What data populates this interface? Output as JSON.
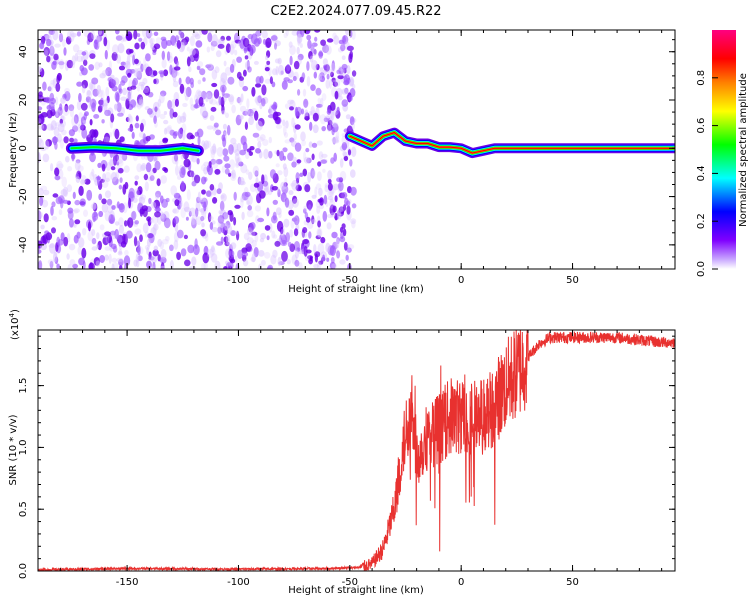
{
  "figure": {
    "title": "C2E2.2024.077.09.45.R22"
  },
  "chart_data": [
    {
      "type": "heatmap",
      "xlabel": "Height of straight line (km)",
      "ylabel": "Frequency (Hz)",
      "xlim": [
        -190,
        96
      ],
      "ylim": [
        -50,
        49
      ],
      "xticks": [
        -150,
        -100,
        -50,
        0,
        50
      ],
      "xtick_labels": [
        "-150",
        "-100",
        "-50",
        "0",
        "50"
      ],
      "yticks": [
        -40,
        -20,
        0,
        20,
        40
      ],
      "ytick_labels": [
        "-40",
        "-20",
        "0",
        "20",
        "40"
      ],
      "grid": false,
      "colorscale": {
        "label": "Normalized spectral amplitude",
        "range": [
          0,
          1
        ],
        "ticks": [
          0.0,
          0.2,
          0.4,
          0.6,
          0.8
        ],
        "tick_labels": [
          "0.0",
          "0.2",
          "0.4",
          "0.6",
          "0.8"
        ],
        "colors": [
          "#ffffff",
          "#8000ff",
          "#0000ff",
          "#00ffff",
          "#00ff00",
          "#ffff00",
          "#ff8000",
          "#ff0000",
          "#ff0080"
        ]
      },
      "noise_region_x": [
        -190,
        -48
      ],
      "ridge": [
        {
          "x": -175,
          "y": 0.0
        },
        {
          "x": -165,
          "y": 0.5
        },
        {
          "x": -155,
          "y": 0.0
        },
        {
          "x": -145,
          "y": -1.0
        },
        {
          "x": -135,
          "y": -1.0
        },
        {
          "x": -125,
          "y": 0.0
        },
        {
          "x": -118,
          "y": -1.0
        },
        {
          "x": -50,
          "y": 5.0
        },
        {
          "x": -45,
          "y": 3.0
        },
        {
          "x": -40,
          "y": 1.0
        },
        {
          "x": -35,
          "y": 5.0
        },
        {
          "x": -30,
          "y": 6.5
        },
        {
          "x": -25,
          "y": 3.0
        },
        {
          "x": -20,
          "y": 2.0
        },
        {
          "x": -15,
          "y": 2.0
        },
        {
          "x": -10,
          "y": 0.5
        },
        {
          "x": -5,
          "y": 0.5
        },
        {
          "x": 0,
          "y": 0.0
        },
        {
          "x": 5,
          "y": -2.0
        },
        {
          "x": 10,
          "y": -1.0
        },
        {
          "x": 15,
          "y": 0.0
        },
        {
          "x": 96,
          "y": 0.0
        }
      ]
    },
    {
      "type": "line",
      "xlabel": "Height of straight line (km)",
      "ylabel": "SNR (10 * v/v)",
      "y_multiplier_label": "(x10",
      "y_multiplier_exp": "4",
      "y_multiplier_close": ")",
      "xlim": [
        -190,
        96
      ],
      "ylim": [
        0,
        19500
      ],
      "xticks": [
        -150,
        -100,
        -50,
        0,
        50
      ],
      "xtick_labels": [
        "-150",
        "-100",
        "-50",
        "0",
        "50"
      ],
      "yticks": [
        0,
        5000,
        10000,
        15000
      ],
      "ytick_labels": [
        "0.0",
        "0.5",
        "1.0",
        "1.5"
      ],
      "grid": false,
      "series": [
        {
          "color": "#e8312f",
          "x": [
            -190,
            -150,
            -100,
            -60,
            -45,
            -40,
            -35,
            -30,
            -27,
            -25,
            -22,
            -20,
            -15,
            -10,
            -5,
            0,
            5,
            10,
            15,
            20,
            30,
            35,
            40,
            50,
            60,
            70,
            80,
            90,
            96
          ],
          "y": [
            100,
            200,
            150,
            200,
            300,
            600,
            1800,
            5000,
            9000,
            11000,
            14000,
            9000,
            11000,
            11500,
            12500,
            12500,
            12500,
            12500,
            13500,
            15000,
            17300,
            18400,
            18900,
            18900,
            18900,
            18900,
            18700,
            18500,
            18500
          ]
        }
      ]
    }
  ]
}
